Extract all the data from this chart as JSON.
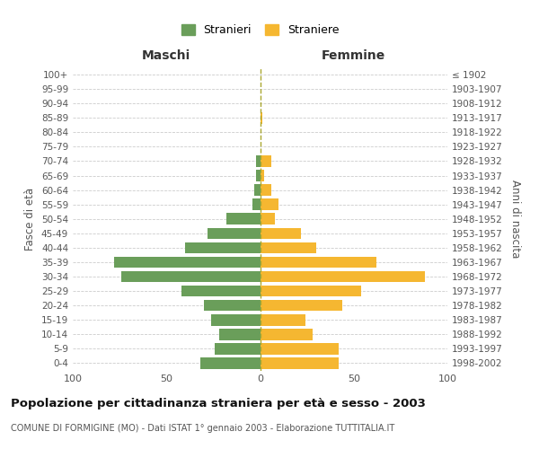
{
  "age_groups": [
    "0-4",
    "5-9",
    "10-14",
    "15-19",
    "20-24",
    "25-29",
    "30-34",
    "35-39",
    "40-44",
    "45-49",
    "50-54",
    "55-59",
    "60-64",
    "65-69",
    "70-74",
    "75-79",
    "80-84",
    "85-89",
    "90-94",
    "95-99",
    "100+"
  ],
  "birth_years": [
    "1998-2002",
    "1993-1997",
    "1988-1992",
    "1983-1987",
    "1978-1982",
    "1973-1977",
    "1968-1972",
    "1963-1967",
    "1958-1962",
    "1953-1957",
    "1948-1952",
    "1943-1947",
    "1938-1942",
    "1933-1937",
    "1928-1932",
    "1923-1927",
    "1918-1922",
    "1913-1917",
    "1908-1912",
    "1903-1907",
    "≤ 1902"
  ],
  "maschi": [
    32,
    24,
    22,
    26,
    30,
    42,
    74,
    78,
    40,
    28,
    18,
    4,
    3,
    2,
    2,
    0,
    0,
    0,
    0,
    0,
    0
  ],
  "femmine": [
    42,
    42,
    28,
    24,
    44,
    54,
    88,
    62,
    30,
    22,
    8,
    10,
    6,
    2,
    6,
    0,
    0,
    1,
    0,
    0,
    0
  ],
  "maschi_color": "#6a9e5a",
  "femmine_color": "#f5b731",
  "title": "Popolazione per cittadinanza straniera per età e sesso - 2003",
  "subtitle": "COMUNE DI FORMIGINE (MO) - Dati ISTAT 1° gennaio 2003 - Elaborazione TUTTITALIA.IT",
  "legend_maschi": "Stranieri",
  "legend_femmine": "Straniere",
  "xlabel_left": "Maschi",
  "xlabel_right": "Femmine",
  "ylabel_left": "Fasce di età",
  "ylabel_right": "Anni di nascita",
  "xlim": 100,
  "background_color": "#ffffff",
  "grid_color": "#cccccc"
}
